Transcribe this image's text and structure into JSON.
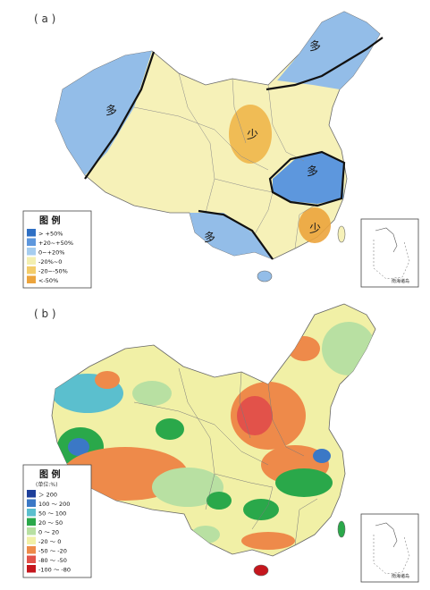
{
  "panel_a": {
    "label": "( a )",
    "legend": {
      "title": "图 例",
      "items": [
        {
          "label": "> +50%",
          "color": "#2e6fc4"
        },
        {
          "label": "+20~+50%",
          "color": "#5d97dd"
        },
        {
          "label": "0~+20%",
          "color": "#a6cdef"
        },
        {
          "label": "-20%~0",
          "color": "#f3efb0"
        },
        {
          "label": "-20~-50%",
          "color": "#f3cc6a"
        },
        {
          "label": "<-50%",
          "color": "#eca43c"
        }
      ]
    },
    "region_labels": [
      "多",
      "多",
      "少",
      "多",
      "少",
      "多"
    ],
    "inset_caption": "南海诸岛"
  },
  "panel_b": {
    "label": "( b )",
    "legend": {
      "title": "图 例",
      "unit": "(单位:%)",
      "items": [
        {
          "label": "＞ 200",
          "color": "#1d3f9a"
        },
        {
          "label": "100 ～ 200",
          "color": "#3b78c6"
        },
        {
          "label": "50 ～ 100",
          "color": "#5bbfce"
        },
        {
          "label": "20 ～ 50",
          "color": "#2aa84a"
        },
        {
          "label": "0 ～ 20",
          "color": "#b8e0a2"
        },
        {
          "label": "-20 ～ 0",
          "color": "#f1f0a6"
        },
        {
          "label": "-50 ～ -20",
          "color": "#ee8a4a"
        },
        {
          "label": "-80 ～ -50",
          "color": "#e2524a"
        },
        {
          "label": "-100 ～ -80",
          "color": "#c5161d"
        }
      ]
    },
    "inset_caption": "南海诸岛"
  }
}
